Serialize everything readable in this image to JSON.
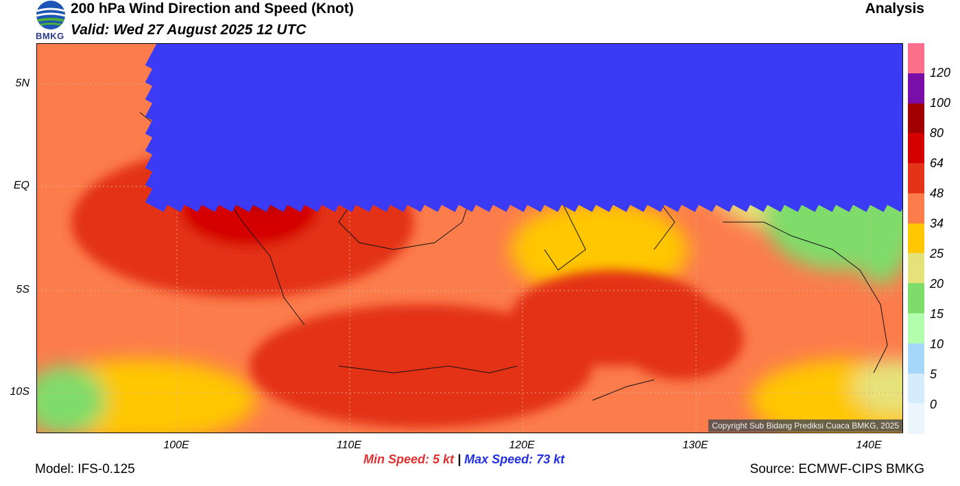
{
  "header": {
    "title": "200 hPa Wind Direction and Speed (Knot)",
    "valid": "Valid: Wed 27 August 2025 12 UTC",
    "product": "Analysis",
    "logo_text": "BMKG"
  },
  "map": {
    "lat_labels": [
      "5N",
      "EQ",
      "5S",
      "10S"
    ],
    "lon_labels": [
      "100E",
      "110E",
      "120E",
      "130E",
      "140E"
    ],
    "copyright": "Copyright Sub Bidang Prediksi Cuaca BMKG, 2025"
  },
  "colorbar": {
    "labels": [
      "120",
      "100",
      "80",
      "64",
      "48",
      "34",
      "25",
      "20",
      "15",
      "10",
      "5",
      "0"
    ],
    "colors": [
      "#fb6f8b",
      "#7a0ea8",
      "#a10000",
      "#d40000",
      "#e33318",
      "#fc7c4c",
      "#fec700",
      "#e6e27a",
      "#80dc6a",
      "#b1ffad",
      "#a5d7fb",
      "#d5ecfc",
      "#ebf6fe"
    ]
  },
  "footer": {
    "min_label": "Min Speed:",
    "min_value": "5 kt",
    "separator": "|",
    "max_label": "Max Speed:",
    "max_value": "73 kt",
    "model": "Model: IFS-0.125",
    "source": "Source: ECMWF-CIPS BMKG"
  },
  "icons": {
    "logo": "bmkg-logo-icon",
    "barb": "wind-barb-icon"
  }
}
